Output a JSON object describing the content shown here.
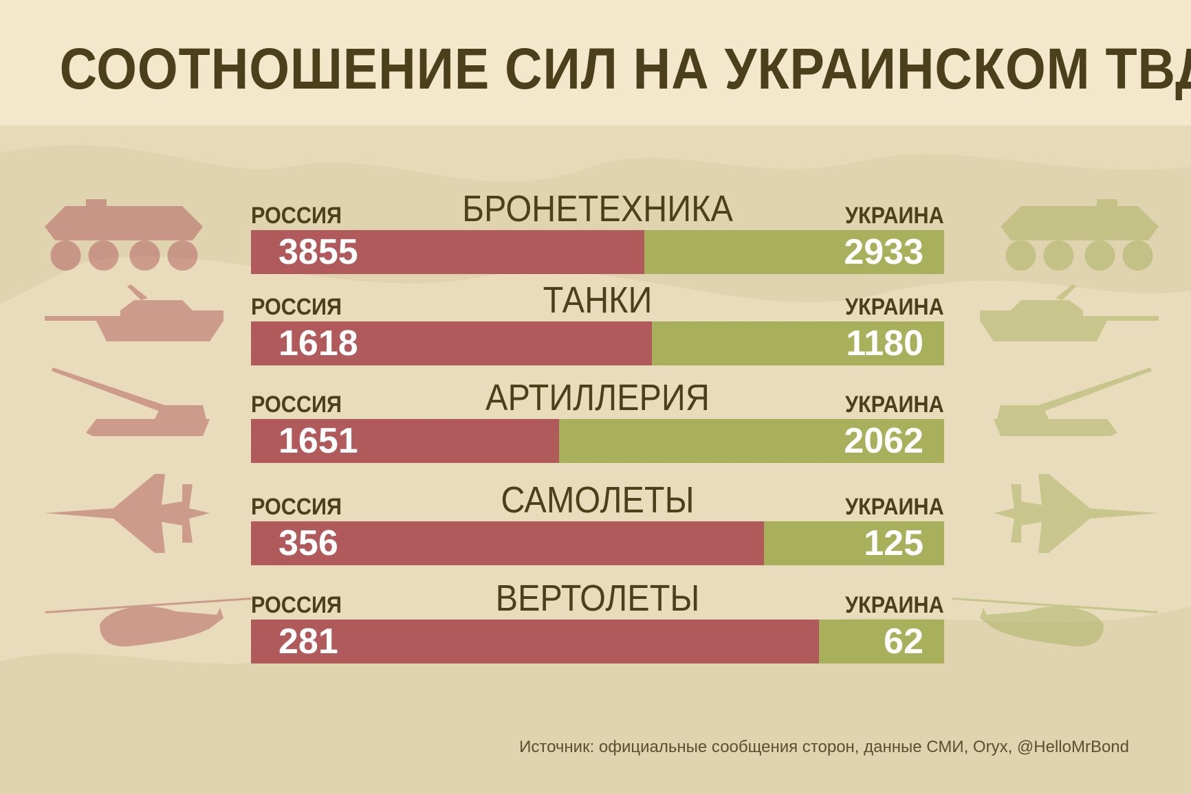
{
  "title": "СООТНОШЕНИЕ СИЛ НА УКРАИНСКОМ ТВД",
  "colors": {
    "russia": "#b05a5c",
    "ukraine": "#a8b05c",
    "title": "#4b3f1c",
    "background": "#e9dcbb"
  },
  "chart_data": {
    "type": "bar",
    "orientation": "horizontal-stacked-share",
    "series": [
      {
        "name": "РОССИЯ",
        "values": [
          3855,
          1618,
          1651,
          356,
          281
        ]
      },
      {
        "name": "УКРАИНА",
        "values": [
          2933,
          1180,
          2062,
          125,
          62
        ]
      }
    ],
    "categories": [
      "БРОНЕТЕХНИКА",
      "ТАНКИ",
      "АРТИЛЛЕРИЯ",
      "САМОЛЕТЫ",
      "ВЕРТОЛЕТЫ"
    ],
    "icons": [
      "apc-icon",
      "tank-icon",
      "artillery-icon",
      "jet-icon",
      "helicopter-icon"
    ]
  },
  "source": "Источник: официальные сообщения сторон, данные СМИ, Oryx, @HelloMrBond"
}
